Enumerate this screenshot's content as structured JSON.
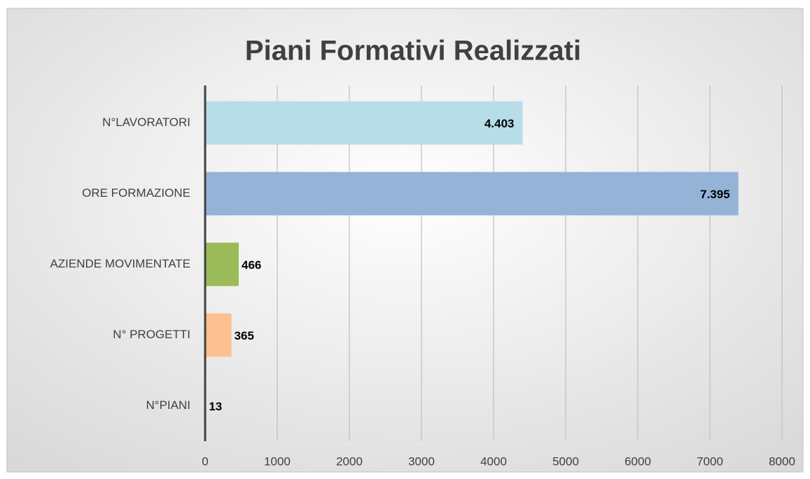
{
  "chart_data": {
    "type": "bar",
    "orientation": "horizontal",
    "title": "Piani Formativi Realizzati",
    "categories": [
      "N°LAVORATORI",
      "ORE FORMAZIONE",
      "AZIENDE MOVIMENTATE",
      "N° PROGETTI",
      "N°PIANI"
    ],
    "values": [
      4403,
      7395,
      466,
      365,
      13
    ],
    "value_labels": [
      "4.403",
      "7.395",
      "466",
      "365",
      "13"
    ],
    "colors": [
      "#b7dde8",
      "#95b3d7",
      "#9bbb59",
      "#fac090",
      "#e6b9b8"
    ],
    "xlim": [
      0,
      8000
    ],
    "xticks": [
      0,
      1000,
      2000,
      3000,
      4000,
      5000,
      6000,
      7000,
      8000
    ],
    "grid": true
  }
}
